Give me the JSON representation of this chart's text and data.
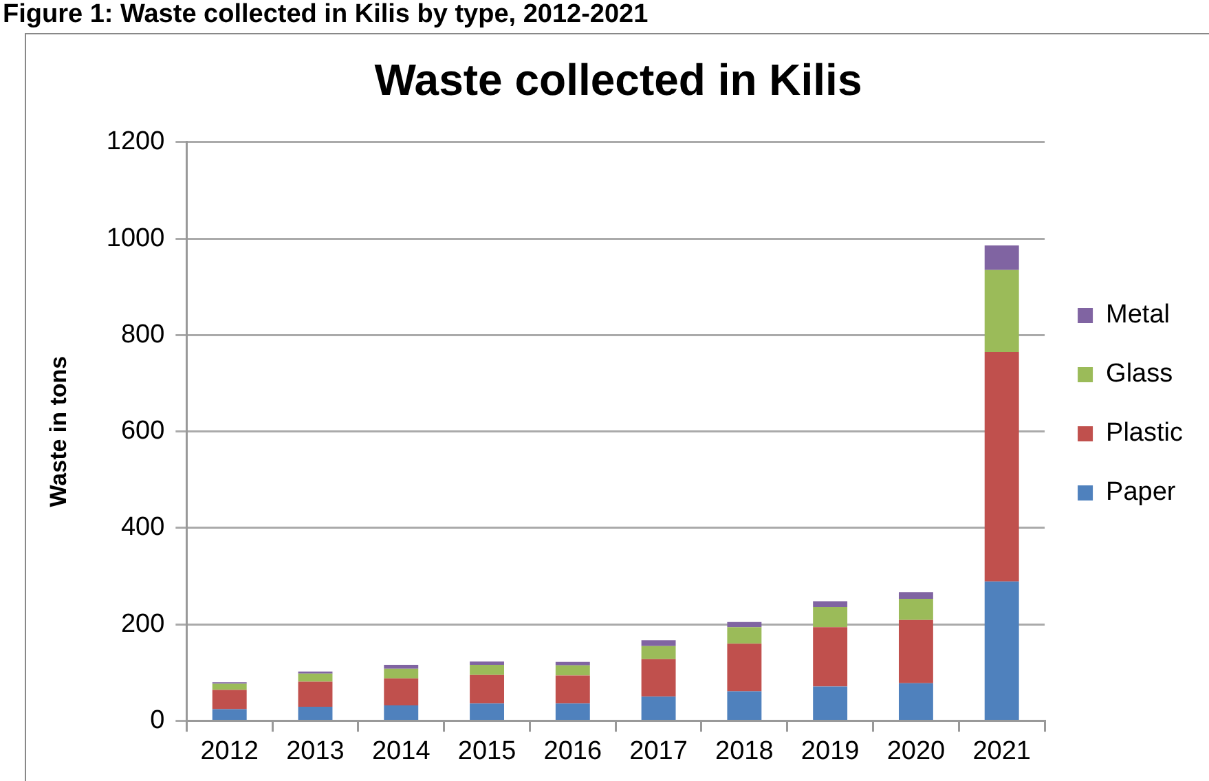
{
  "chart_data": {
    "type": "bar",
    "title": "Waste collected in Kilis",
    "ylabel": "Waste in tons",
    "annotations": [
      "Figure 1: Waste collected in Kilis by type, 2012-2021"
    ],
    "categories": [
      "2012",
      "2013",
      "2014",
      "2015",
      "2016",
      "2017",
      "2018",
      "2019",
      "2020",
      "2021"
    ],
    "series": [
      {
        "name": "Paper",
        "color": "#4f81bd",
        "values": [
          24,
          29,
          32,
          36,
          36,
          50,
          61,
          71,
          78,
          289
        ]
      },
      {
        "name": "Plastic",
        "color": "#c0504d",
        "values": [
          40,
          52,
          56,
          59,
          58,
          78,
          99,
          123,
          131,
          476
        ]
      },
      {
        "name": "Glass",
        "color": "#9bbb59",
        "values": [
          13,
          17,
          20,
          21,
          21,
          27,
          34,
          42,
          44,
          170
        ]
      },
      {
        "name": "Metal",
        "color": "#8064a2",
        "values": [
          3,
          4,
          8,
          7,
          7,
          12,
          11,
          12,
          14,
          51
        ]
      }
    ],
    "stacked": true,
    "ylim": [
      0,
      1200
    ],
    "yticks": [
      0,
      200,
      400,
      600,
      800,
      1000,
      1200
    ],
    "grid": "y",
    "legend": "right"
  }
}
